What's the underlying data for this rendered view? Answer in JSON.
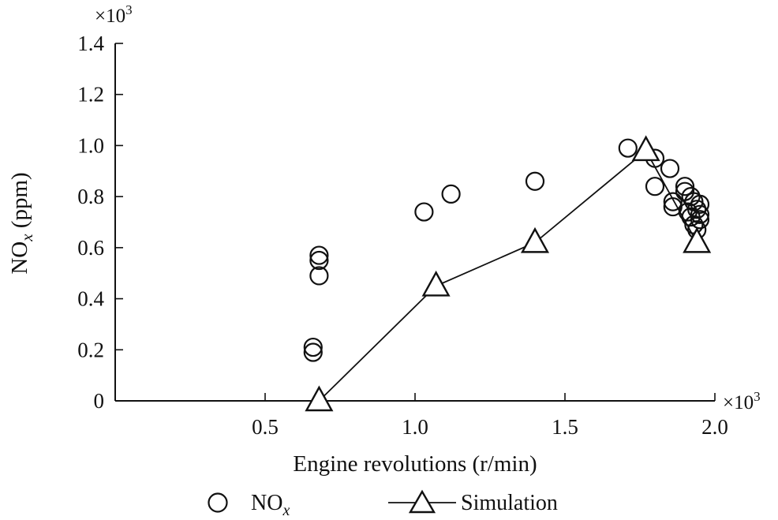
{
  "chart_data": {
    "type": "scatter",
    "title": "",
    "xlabel": "Engine revolutions (r/min)",
    "ylabel_main": "NO",
    "ylabel_sub": "x",
    "ylabel_unit": " (ppm)",
    "x_multiplier": "×10",
    "y_multiplier": "×10",
    "multiplier_exp": "3",
    "xlim": [
      0.0,
      2.0
    ],
    "ylim": [
      0.0,
      1.4
    ],
    "x_ticks": [
      0.5,
      1.0,
      1.5,
      2.0
    ],
    "x_tick_labels": [
      "0.5",
      "1.0",
      "1.5",
      "2.0"
    ],
    "y_ticks": [
      0.0,
      0.2,
      0.4,
      0.6,
      0.8,
      1.0,
      1.2,
      1.4
    ],
    "y_tick_labels": [
      "0",
      "0.2",
      "0.4",
      "0.6",
      "0.8",
      "1.0",
      "1.2",
      "1.4"
    ],
    "legend_position": "bottom",
    "series": [
      {
        "name": "NOx",
        "legend_main": "NO",
        "legend_sub": "x",
        "marker": "circle",
        "line": false,
        "points": [
          [
            0.66,
            0.21
          ],
          [
            0.66,
            0.19
          ],
          [
            0.68,
            0.57
          ],
          [
            0.68,
            0.55
          ],
          [
            0.68,
            0.49
          ],
          [
            1.03,
            0.74
          ],
          [
            1.12,
            0.81
          ],
          [
            1.4,
            0.86
          ],
          [
            1.71,
            0.99
          ],
          [
            1.8,
            0.95
          ],
          [
            1.8,
            0.84
          ],
          [
            1.85,
            0.91
          ],
          [
            1.86,
            0.78
          ],
          [
            1.86,
            0.76
          ],
          [
            1.9,
            0.84
          ],
          [
            1.9,
            0.82
          ],
          [
            1.91,
            0.74
          ],
          [
            1.92,
            0.8
          ],
          [
            1.92,
            0.72
          ],
          [
            1.93,
            0.78
          ],
          [
            1.93,
            0.69
          ],
          [
            1.94,
            0.75
          ],
          [
            1.94,
            0.67
          ],
          [
            1.95,
            0.77
          ],
          [
            1.95,
            0.73
          ],
          [
            1.95,
            0.71
          ]
        ]
      },
      {
        "name": "Simulation",
        "marker": "triangle",
        "line": true,
        "points": [
          [
            0.68,
            0.0
          ],
          [
            1.07,
            0.45
          ],
          [
            1.4,
            0.62
          ],
          [
            1.77,
            0.98
          ],
          [
            1.94,
            0.62
          ]
        ]
      }
    ]
  }
}
